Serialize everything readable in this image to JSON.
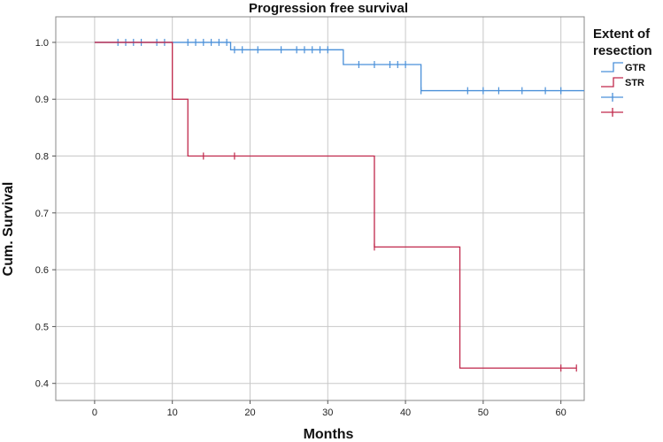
{
  "chart_data": {
    "type": "line",
    "title": "Progression free survival",
    "xlabel": "Months",
    "ylabel": "Cum. Survival",
    "xlim": [
      -5,
      63
    ],
    "ylim": [
      0.37,
      1.045
    ],
    "x_ticks": [
      0,
      10,
      20,
      30,
      40,
      50,
      60
    ],
    "y_ticks": [
      0.4,
      0.5,
      0.6,
      0.7,
      0.8,
      0.9,
      1.0
    ],
    "y_tick_labels": [
      "0.4",
      "0.5",
      "0.6",
      "0.7",
      "0.8",
      "0.9",
      "1.0"
    ],
    "grid": true,
    "legend": {
      "title": "Extent of resection",
      "title_lines": [
        "Extent of",
        "resection"
      ],
      "placement": "right",
      "entries": [
        {
          "label": "GTR",
          "marker": "step",
          "series": 0
        },
        {
          "label": "STR",
          "marker": "step",
          "series": 1
        },
        {
          "label": "",
          "marker": "censor",
          "series": 0
        },
        {
          "label": "",
          "marker": "censor",
          "series": 1
        }
      ]
    },
    "series": [
      {
        "name": "GTR",
        "color": "#4a90d9",
        "step_x": [
          0,
          17,
          18,
          32,
          33,
          42,
          63
        ],
        "step_y": [
          1.0,
          1.0,
          0.987,
          0.987,
          0.961,
          0.915,
          0.915
        ],
        "steps": [
          {
            "x": 0,
            "y": 1.0
          },
          {
            "x": 17.5,
            "y": 0.987
          },
          {
            "x": 32,
            "y": 0.961
          },
          {
            "x": 42,
            "y": 0.915
          },
          {
            "x": 63,
            "y": 0.915
          }
        ],
        "censored": [
          {
            "x": 3,
            "y": 1.0
          },
          {
            "x": 4,
            "y": 1.0
          },
          {
            "x": 5,
            "y": 1.0
          },
          {
            "x": 6,
            "y": 1.0
          },
          {
            "x": 8,
            "y": 1.0
          },
          {
            "x": 9,
            "y": 1.0
          },
          {
            "x": 12,
            "y": 1.0
          },
          {
            "x": 13,
            "y": 1.0
          },
          {
            "x": 14,
            "y": 1.0
          },
          {
            "x": 15,
            "y": 1.0
          },
          {
            "x": 16,
            "y": 1.0
          },
          {
            "x": 17,
            "y": 1.0
          },
          {
            "x": 18,
            "y": 0.987
          },
          {
            "x": 19,
            "y": 0.987
          },
          {
            "x": 21,
            "y": 0.987
          },
          {
            "x": 24,
            "y": 0.987
          },
          {
            "x": 26,
            "y": 0.987
          },
          {
            "x": 27,
            "y": 0.987
          },
          {
            "x": 28,
            "y": 0.987
          },
          {
            "x": 29,
            "y": 0.987
          },
          {
            "x": 30,
            "y": 0.987
          },
          {
            "x": 34,
            "y": 0.961
          },
          {
            "x": 36,
            "y": 0.961
          },
          {
            "x": 38,
            "y": 0.961
          },
          {
            "x": 39,
            "y": 0.961
          },
          {
            "x": 40,
            "y": 0.961
          },
          {
            "x": 42,
            "y": 0.915
          },
          {
            "x": 48,
            "y": 0.915
          },
          {
            "x": 50,
            "y": 0.915
          },
          {
            "x": 52,
            "y": 0.915
          },
          {
            "x": 55,
            "y": 0.915
          },
          {
            "x": 58,
            "y": 0.915
          },
          {
            "x": 60,
            "y": 0.915
          }
        ]
      },
      {
        "name": "STR",
        "color": "#c0284b",
        "steps": [
          {
            "x": 0,
            "y": 1.0
          },
          {
            "x": 10,
            "y": 0.9
          },
          {
            "x": 12,
            "y": 0.8
          },
          {
            "x": 36,
            "y": 0.64
          },
          {
            "x": 47,
            "y": 0.427
          },
          {
            "x": 62,
            "y": 0.427
          }
        ],
        "censored": [
          {
            "x": 14,
            "y": 0.8
          },
          {
            "x": 18,
            "y": 0.8
          },
          {
            "x": 36,
            "y": 0.64
          },
          {
            "x": 60,
            "y": 0.427
          },
          {
            "x": 62,
            "y": 0.427
          }
        ]
      }
    ]
  }
}
